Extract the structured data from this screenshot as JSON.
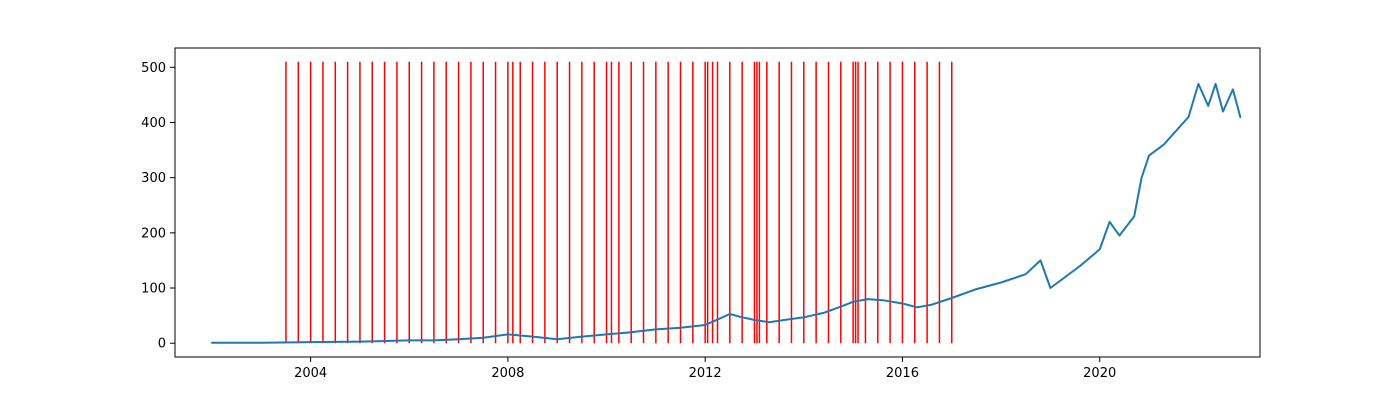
{
  "chart_data": {
    "type": "line",
    "title": "",
    "xlabel": "",
    "ylabel": "",
    "xlim": [
      2001.25,
      2023.25
    ],
    "ylim": [
      -25,
      535
    ],
    "grid": false,
    "x_ticks": [
      2004,
      2008,
      2012,
      2016,
      2020
    ],
    "x_tick_labels": [
      "2004",
      "2008",
      "2012",
      "2016",
      "2020"
    ],
    "y_ticks": [
      0,
      100,
      200,
      300,
      400,
      500
    ],
    "y_tick_labels": [
      "0",
      "100",
      "200",
      "300",
      "400",
      "500"
    ],
    "series": [
      {
        "color": "#1f77b4",
        "x": [
          2002.0,
          2003.0,
          2004.0,
          2005.0,
          2006.0,
          2006.5,
          2007.0,
          2007.5,
          2008.0,
          2008.5,
          2009.0,
          2009.5,
          2010.0,
          2010.5,
          2011.0,
          2011.5,
          2012.0,
          2012.3,
          2012.5,
          2012.7,
          2013.0,
          2013.3,
          2013.6,
          2014.0,
          2014.4,
          2014.8,
          2015.0,
          2015.3,
          2015.6,
          2016.0,
          2016.3,
          2016.6,
          2017.0,
          2017.5,
          2018.0,
          2018.5,
          2018.8,
          2019.0,
          2019.3,
          2019.6,
          2020.0,
          2020.2,
          2020.4,
          2020.7,
          2020.85,
          2021.0,
          2021.3,
          2021.5,
          2021.8,
          2022.0,
          2022.2,
          2022.35,
          2022.5,
          2022.7,
          2022.85
        ],
        "y": [
          1,
          1,
          2,
          3,
          5,
          5,
          7,
          10,
          16,
          12,
          7,
          12,
          16,
          20,
          25,
          28,
          33,
          45,
          53,
          48,
          42,
          38,
          42,
          47,
          55,
          68,
          75,
          80,
          78,
          72,
          65,
          70,
          82,
          98,
          110,
          125,
          150,
          100,
          120,
          140,
          170,
          220,
          195,
          230,
          300,
          340,
          360,
          380,
          410,
          470,
          430,
          470,
          420,
          460,
          410
        ]
      }
    ],
    "vertical_lines": {
      "color": "#ff0000",
      "ymin": 0,
      "ymax": 510,
      "x": [
        2003.5,
        2003.75,
        2004.0,
        2004.25,
        2004.5,
        2004.75,
        2005.0,
        2005.25,
        2005.5,
        2005.75,
        2006.0,
        2006.25,
        2006.5,
        2006.75,
        2007.0,
        2007.25,
        2007.5,
        2007.75,
        2008.0,
        2008.1,
        2008.25,
        2008.5,
        2008.75,
        2009.0,
        2009.25,
        2009.5,
        2009.75,
        2010.0,
        2010.1,
        2010.25,
        2010.5,
        2010.75,
        2011.0,
        2011.25,
        2011.5,
        2011.75,
        2012.0,
        2012.05,
        2012.15,
        2012.25,
        2012.5,
        2012.75,
        2013.0,
        2013.05,
        2013.1,
        2013.25,
        2013.5,
        2013.75,
        2014.0,
        2014.25,
        2014.5,
        2014.75,
        2015.0,
        2015.05,
        2015.1,
        2015.25,
        2015.5,
        2015.75,
        2016.0,
        2016.25,
        2016.5,
        2016.75,
        2017.0
      ]
    }
  }
}
